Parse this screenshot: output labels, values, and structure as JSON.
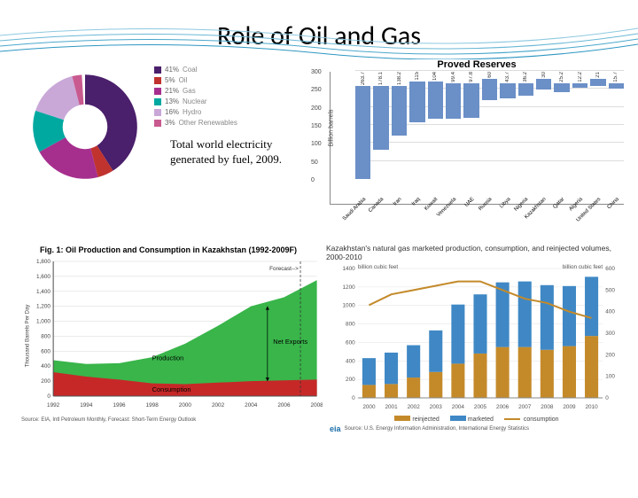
{
  "page_title": "Role of Oil and Gas",
  "donut": {
    "type": "pie",
    "title": "Total world electricity generated by fuel, 2009.",
    "slices": [
      {
        "label": "Coal",
        "pct": 41,
        "color": "#4a1f6b"
      },
      {
        "label": "Oil",
        "pct": 5,
        "color": "#c0332e"
      },
      {
        "label": "Gas",
        "pct": 21,
        "color": "#a62f8e"
      },
      {
        "label": "Nuclear",
        "pct": 13,
        "color": "#00a9a0"
      },
      {
        "label": "Hydro",
        "pct": 16,
        "color": "#c9a8d8"
      },
      {
        "label": "Other Renewables",
        "pct": 3,
        "color": "#c95a8f"
      }
    ],
    "inner_color": "#ffffff",
    "legend_text_color": "#777"
  },
  "reserves": {
    "type": "bar",
    "title": "Proved Reserves",
    "ylabel": "Billion barrels",
    "ylim": [
      0,
      300
    ],
    "ytick_step": 50,
    "categories": [
      "Saudi Arabia",
      "Canada",
      "Iran",
      "Iraq",
      "Kuwait",
      "Venezuela",
      "UAE",
      "Russia",
      "Libya",
      "Nigeria",
      "Kazakhstan",
      "Qatar",
      "Algeria",
      "United States",
      "China"
    ],
    "values": [
      263.7,
      178.1,
      138.2,
      115,
      104,
      99.4,
      97.8,
      60,
      43.7,
      36.2,
      30,
      25.2,
      12.2,
      21,
      15.7
    ],
    "bar_color": "#6b8fc7",
    "grid_color": "#dcdcdc",
    "background_color": "#ffffff",
    "label_fontsize": 7
  },
  "kz_oil": {
    "type": "area",
    "title": "Fig. 1: Oil Production and Consumption in Kazakhstan (1992-2009F)",
    "ylabel": "Thousand Barrels Per Day",
    "years": [
      1992,
      1994,
      1996,
      1998,
      2000,
      2002,
      2004,
      2006,
      2008
    ],
    "production": [
      480,
      430,
      440,
      520,
      700,
      940,
      1200,
      1320,
      1550
    ],
    "consumption": [
      320,
      260,
      220,
      170,
      160,
      180,
      200,
      210,
      220
    ],
    "forecast_x": 2008,
    "production_color": "#39b54a",
    "consumption_color": "#c62828",
    "grid_color": "#d8d8d8",
    "xlim": [
      1992,
      2008
    ],
    "ylim": [
      0,
      1800
    ],
    "ytick_step": 200,
    "labels": {
      "production": "Production",
      "consumption": "Consumption",
      "netexports": "Net Exports",
      "forecast": "Forecast-->"
    },
    "source": "Source: EIA, Intl Petroleum Monthly, Forecast: Short-Term Energy Outlook"
  },
  "kz_gas": {
    "type": "bar+line",
    "title": "Kazakhstan's natural gas marketed production, consumption, and reinjected volumes, 2000-2010",
    "years": [
      2000,
      2001,
      2002,
      2003,
      2004,
      2005,
      2006,
      2007,
      2008,
      2009,
      2010
    ],
    "reinjected": [
      140,
      150,
      220,
      280,
      370,
      480,
      550,
      550,
      520,
      560,
      670
    ],
    "marketed": [
      290,
      340,
      350,
      450,
      640,
      640,
      700,
      710,
      700,
      650,
      640
    ],
    "consumption": [
      430,
      480,
      500,
      520,
      540,
      540,
      500,
      460,
      440,
      400,
      370
    ],
    "yleft_label": "billion cubic feet",
    "yleft_lim": [
      0,
      1400
    ],
    "yleft_step": 200,
    "yright_label": "billion cubic feet",
    "yright_lim": [
      0,
      600
    ],
    "yright_step": 100,
    "colors": {
      "reinjected": "#c48a2a",
      "marketed": "#3f88c5",
      "consumption": "#c48a2a"
    },
    "legend": [
      "reinjected",
      "marketed",
      "consumption"
    ],
    "source": "Source: U.S. Energy Information Administration, International Energy Statistics",
    "eia_logo_text": "eia"
  }
}
